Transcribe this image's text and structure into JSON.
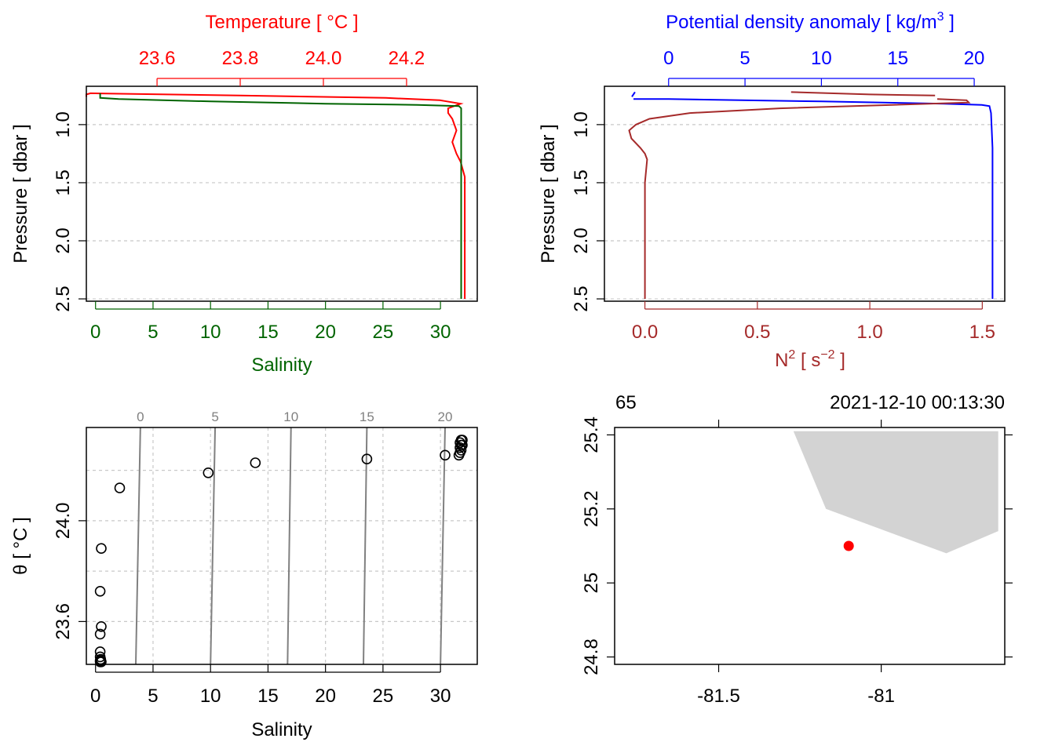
{
  "chart_data": [
    {
      "id": "profile",
      "type": "line",
      "title": "",
      "top_axis_label": "Temperature [ °C ]",
      "bottom_axis_label": "Salinity",
      "ylabel": "Pressure [ dbar ]",
      "ylim": [
        2.52,
        0.67
      ],
      "y_ticks": [
        1.0,
        1.5,
        2.0,
        2.5
      ],
      "y_tick_labels": [
        "1.0",
        "1.5",
        "2.0",
        "2.5"
      ],
      "temp_range": [
        23.43,
        24.37
      ],
      "temp_ticks": [
        23.6,
        23.8,
        24.0,
        24.2
      ],
      "temp_tick_labels": [
        "23.6",
        "23.8",
        "24.0",
        "24.2"
      ],
      "sal_range": [
        -0.8,
        33.2
      ],
      "sal_ticks": [
        0,
        5,
        10,
        15,
        20,
        25,
        30
      ],
      "sal_tick_labels": [
        "0",
        "5",
        "10",
        "15",
        "20",
        "25",
        "30"
      ],
      "grid": true,
      "colors": {
        "temperature": "#ff0000",
        "salinity": "#006400",
        "axis": "#000000",
        "grid": "#c8c8c8"
      },
      "series": [
        {
          "variable": "temperature",
          "points": [
            [
              23.43,
              0.76
            ],
            [
              23.43,
              0.74
            ],
            [
              23.44,
              0.73
            ],
            [
              23.8,
              0.75
            ],
            [
              24.15,
              0.77
            ],
            [
              24.28,
              0.79
            ],
            [
              24.33,
              0.82
            ],
            [
              24.3,
              0.86
            ],
            [
              24.3,
              0.9
            ],
            [
              24.31,
              0.95
            ],
            [
              24.32,
              1.05
            ],
            [
              24.31,
              1.15
            ],
            [
              24.32,
              1.25
            ],
            [
              24.33,
              1.32
            ],
            [
              24.34,
              1.45
            ],
            [
              24.34,
              1.6
            ],
            [
              24.34,
              2.0
            ],
            [
              24.34,
              2.5
            ]
          ]
        },
        {
          "variable": "salinity",
          "points": [
            [
              0.4,
              0.73
            ],
            [
              0.4,
              0.76
            ],
            [
              0.4,
              0.77
            ],
            [
              2.0,
              0.78
            ],
            [
              10.0,
              0.8
            ],
            [
              20.0,
              0.82
            ],
            [
              28.0,
              0.83
            ],
            [
              31.6,
              0.84
            ],
            [
              31.8,
              0.86
            ],
            [
              31.8,
              1.2
            ],
            [
              31.8,
              2.0
            ],
            [
              31.8,
              2.5
            ]
          ]
        }
      ]
    },
    {
      "id": "density",
      "type": "line",
      "title": "",
      "top_axis_label": "Potential density anomaly [ kg/m",
      "top_axis_label_sup": "3",
      "top_axis_label_end": " ]",
      "bottom_axis_label": "N",
      "bottom_axis_label_sup": "2",
      "bottom_axis_label_mid": " [ s",
      "bottom_axis_label_sup2": "−2",
      "bottom_axis_label_end": " ]",
      "ylabel": "Pressure [ dbar ]",
      "ylim": [
        2.52,
        0.67
      ],
      "y_ticks": [
        1.0,
        1.5,
        2.0,
        2.5
      ],
      "y_tick_labels": [
        "1.0",
        "1.5",
        "2.0",
        "2.5"
      ],
      "sigma_range": [
        -4.2,
        22.0
      ],
      "sigma_ticks": [
        0,
        5,
        10,
        15,
        20
      ],
      "sigma_tick_labels": [
        "0",
        "5",
        "10",
        "15",
        "20"
      ],
      "n2_range": [
        -0.18,
        1.6
      ],
      "n2_ticks": [
        0.0,
        0.5,
        1.0,
        1.5
      ],
      "n2_tick_labels": [
        "0.0",
        "0.5",
        "1.0",
        "1.5"
      ],
      "grid": true,
      "colors": {
        "density": "#0000ff",
        "n2": "#a52a2a",
        "axis": "#000000",
        "grid": "#c8c8c8"
      },
      "series": [
        {
          "variable": "sigma",
          "segments": [
            [
              [
                -2.4,
                0.76
              ],
              [
                -2.2,
                0.72
              ],
              [
                -2.3,
                0.74
              ]
            ],
            [
              [
                -2.3,
                0.78
              ],
              [
                0.0,
                0.78
              ],
              [
                10.0,
                0.8
              ],
              [
                18.0,
                0.82
              ],
              [
                20.5,
                0.83
              ],
              [
                21.0,
                0.84
              ],
              [
                21.1,
                0.9
              ],
              [
                21.2,
                1.2
              ],
              [
                21.2,
                2.0
              ],
              [
                21.2,
                2.5
              ]
            ]
          ]
        },
        {
          "variable": "n2",
          "segments": [
            [
              [
                0.65,
                0.72
              ],
              [
                1.0,
                0.74
              ],
              [
                1.29,
                0.75
              ]
            ],
            [
              [
                1.3,
                0.78
              ],
              [
                1.43,
                0.79
              ],
              [
                1.44,
                0.81
              ],
              [
                1.1,
                0.83
              ],
              [
                0.6,
                0.86
              ],
              [
                0.2,
                0.9
              ],
              [
                0.02,
                0.95
              ],
              [
                -0.04,
                1.0
              ],
              [
                -0.07,
                1.05
              ],
              [
                -0.06,
                1.12
              ],
              [
                -0.02,
                1.2
              ],
              [
                0.0,
                1.25
              ],
              [
                0.01,
                1.3
              ],
              [
                0.0,
                1.5
              ],
              [
                0.0,
                2.0
              ],
              [
                0.0,
                2.5
              ]
            ]
          ]
        }
      ]
    },
    {
      "id": "ts",
      "type": "scatter",
      "title": "",
      "xlabel": "Salinity",
      "ylabel": "θ [ °C ]",
      "xlim": [
        -0.8,
        33.2
      ],
      "ylim": [
        23.43,
        24.37
      ],
      "x_ticks": [
        0,
        5,
        10,
        15,
        20,
        25,
        30
      ],
      "x_tick_labels": [
        "0",
        "5",
        "10",
        "15",
        "20",
        "25",
        "30"
      ],
      "y_ticks": [
        23.6,
        24.0
      ],
      "y_tick_labels": [
        "23.6",
        "24.0"
      ],
      "y_grid": [
        23.6,
        23.8,
        24.0,
        24.2
      ],
      "x_grid": [
        5,
        10,
        15,
        20,
        25,
        30
      ],
      "grid": true,
      "isopycnals": [
        {
          "label": "0",
          "top": [
            3.9,
            24.37
          ],
          "bottom": [
            3.5,
            23.43
          ]
        },
        {
          "label": "5",
          "top": [
            10.4,
            24.37
          ],
          "bottom": [
            10.0,
            23.43
          ]
        },
        {
          "label": "10",
          "top": [
            17.0,
            24.37
          ],
          "bottom": [
            16.7,
            23.43
          ]
        },
        {
          "label": "15",
          "top": [
            23.6,
            24.37
          ],
          "bottom": [
            23.3,
            23.43
          ]
        },
        {
          "label": "20",
          "top": [
            30.4,
            24.37
          ],
          "bottom": [
            30.0,
            23.43
          ]
        }
      ],
      "colors": {
        "points": "#000000",
        "isopycnal": "#808080",
        "grid": "#c8c8c8"
      },
      "points": [
        [
          0.4,
          23.44
        ],
        [
          0.4,
          23.445
        ],
        [
          0.45,
          23.45
        ],
        [
          0.5,
          23.44
        ],
        [
          0.4,
          23.46
        ],
        [
          0.4,
          23.48
        ],
        [
          0.4,
          23.55
        ],
        [
          0.5,
          23.58
        ],
        [
          0.4,
          23.72
        ],
        [
          0.5,
          23.89
        ],
        [
          2.1,
          24.13
        ],
        [
          9.8,
          24.19
        ],
        [
          13.9,
          24.23
        ],
        [
          23.6,
          24.245
        ],
        [
          30.4,
          24.26
        ],
        [
          31.6,
          24.26
        ],
        [
          31.7,
          24.27
        ],
        [
          31.8,
          24.28
        ],
        [
          31.7,
          24.29
        ],
        [
          31.8,
          24.3
        ],
        [
          31.9,
          24.3
        ],
        [
          31.7,
          24.31
        ],
        [
          31.8,
          24.32
        ],
        [
          31.9,
          24.32
        ]
      ]
    },
    {
      "id": "map",
      "type": "scatter",
      "title": "",
      "top_left_label": "65",
      "top_right_label": "2021-12-10 00:13:30",
      "xlim": [
        -81.82,
        -80.62
      ],
      "ylim": [
        24.78,
        25.42
      ],
      "x_ticks": [
        -81.5,
        -81.0
      ],
      "x_tick_labels": [
        "-81.5",
        "-81"
      ],
      "y_ticks": [
        24.8,
        25.0,
        25.2,
        25.4
      ],
      "y_tick_labels": [
        "24.8",
        "25",
        "25.2",
        "25.4"
      ],
      "land_polygon": [
        [
          -81.27,
          25.41
        ],
        [
          -80.64,
          25.41
        ],
        [
          -80.64,
          25.14
        ],
        [
          -80.8,
          25.08
        ],
        [
          -81.17,
          25.2
        ]
      ],
      "station": [
        -81.1,
        25.1
      ],
      "colors": {
        "land": "#d3d3d3",
        "station": "#ff0000",
        "axis": "#000000"
      }
    }
  ]
}
